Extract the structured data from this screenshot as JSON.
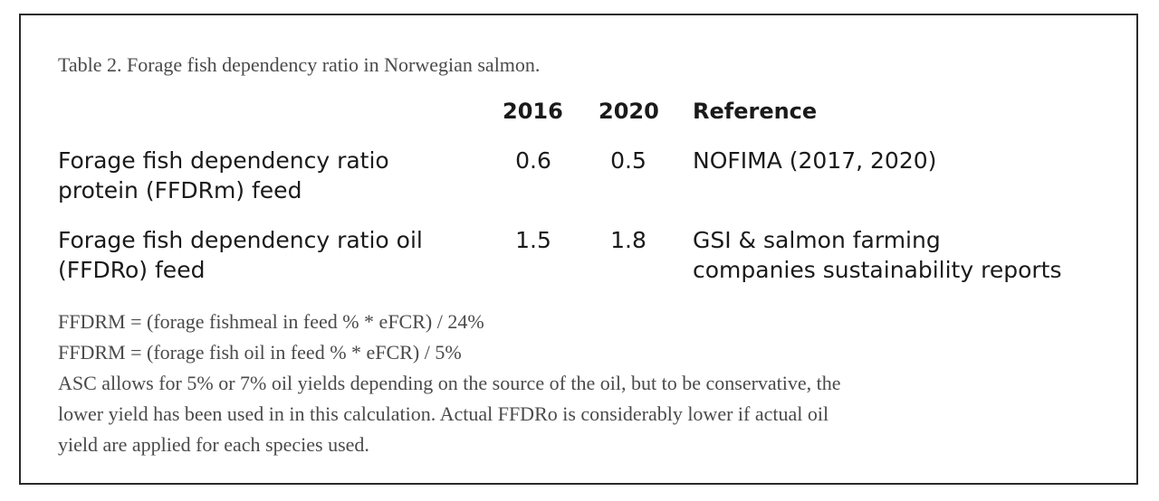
{
  "table": {
    "caption": "Table 2. Forage fish dependency ratio in Norwegian salmon.",
    "headers": {
      "col1": "2016",
      "col2": "2020",
      "reference": "Reference"
    },
    "rows": [
      {
        "label_line1": "Forage fish dependency ratio",
        "label_line2": "protein (FFDRm) feed",
        "v2016": "0.6",
        "v2020": "0.5",
        "ref_line1": "NOFIMA (2017, 2020)",
        "ref_line2": ""
      },
      {
        "label_line1": "Forage fish dependency ratio oil",
        "label_line2": "(FFDRo) feed",
        "v2016": "1.5",
        "v2020": "1.8",
        "ref_line1": "GSI & salmon farming",
        "ref_line2": "companies sustainability reports"
      }
    ]
  },
  "notes": {
    "formula1": "FFDRM = (forage fishmeal in feed % * eFCR) / 24%",
    "formula2": "FFDRM = (forage fish oil in feed % * eFCR) / 5%",
    "para_line1": "ASC allows for 5% or 7% oil yields depending on the source of the oil, but to be conservative, the",
    "para_line2": "lower yield has been used in in this calculation. Actual FFDRo is considerably lower if actual oil",
    "para_line3": "yield are applied for each species used."
  }
}
